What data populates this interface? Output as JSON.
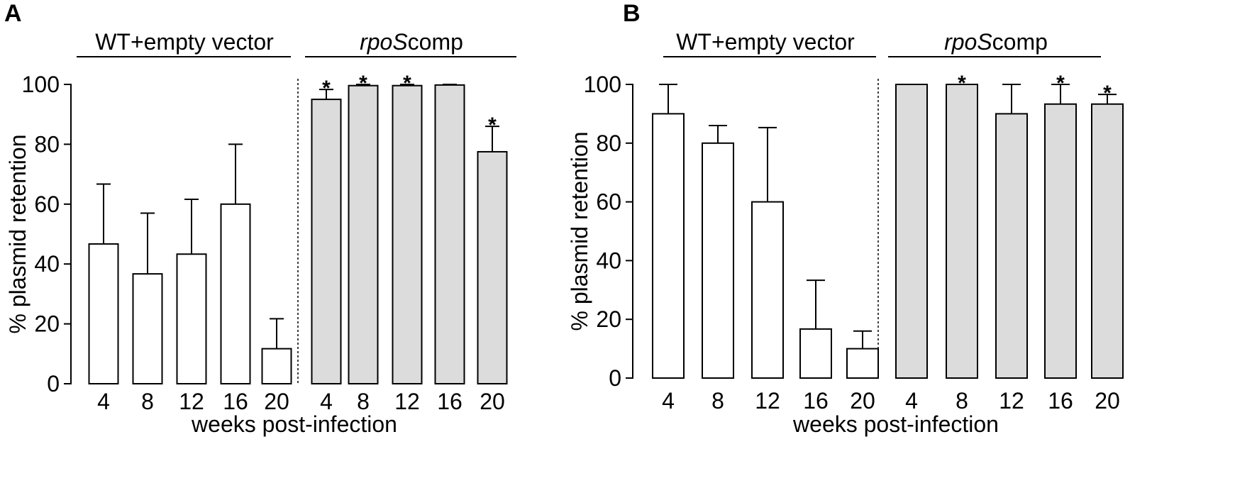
{
  "figure": {
    "panels": [
      "A",
      "B"
    ]
  },
  "chart_data": [
    {
      "panel": "A",
      "type": "bar",
      "xlabel": "weeks post-infection",
      "ylabel": "% plasmid retention",
      "ylim": [
        0,
        100
      ],
      "yticks": [
        0,
        20,
        40,
        60,
        80,
        100
      ],
      "groups": [
        {
          "label_italic": "",
          "label_plain": "WT+empty vector",
          "fill": "#ffffff",
          "categories": [
            "4",
            "8",
            "12",
            "16",
            "20"
          ],
          "values": [
            46.7,
            36.7,
            43.3,
            60,
            11.7
          ],
          "errors": [
            20,
            20.3,
            18.3,
            20,
            10
          ],
          "stars": [
            "",
            "",
            "",
            "",
            ""
          ]
        },
        {
          "label_italic": "rpoS",
          "label_plain": "comp",
          "fill": "#dcdcdc",
          "categories": [
            "4",
            "8",
            "12",
            "16",
            "20"
          ],
          "values": [
            95,
            99.6,
            99.6,
            99.8,
            77.5
          ],
          "errors": [
            3.3,
            0.4,
            0.4,
            0.2,
            8.5
          ],
          "stars": [
            "*",
            "*",
            "*",
            "",
            "*"
          ]
        }
      ]
    },
    {
      "panel": "B",
      "type": "bar",
      "xlabel": "weeks post-infection",
      "ylabel": "% plasmid retention",
      "ylim": [
        0,
        100
      ],
      "yticks": [
        0,
        20,
        40,
        60,
        80,
        100
      ],
      "groups": [
        {
          "label_italic": "",
          "label_plain": "WT+empty vector",
          "fill": "#ffffff",
          "categories": [
            "4",
            "8",
            "12",
            "16",
            "20"
          ],
          "values": [
            90,
            80,
            60,
            16.7,
            10
          ],
          "errors": [
            10,
            6,
            25.3,
            16.6,
            6
          ],
          "stars": [
            "",
            "",
            "",
            "",
            ""
          ]
        },
        {
          "label_italic": "rpoS",
          "label_plain": "comp",
          "fill": "#dcdcdc",
          "categories": [
            "4",
            "8",
            "12",
            "16",
            "20"
          ],
          "values": [
            100,
            100,
            90,
            93.3,
            93.3
          ],
          "errors": [
            0,
            0,
            10,
            6.7,
            3.3
          ],
          "stars": [
            "",
            "*",
            "",
            "*",
            "*"
          ]
        }
      ]
    }
  ]
}
